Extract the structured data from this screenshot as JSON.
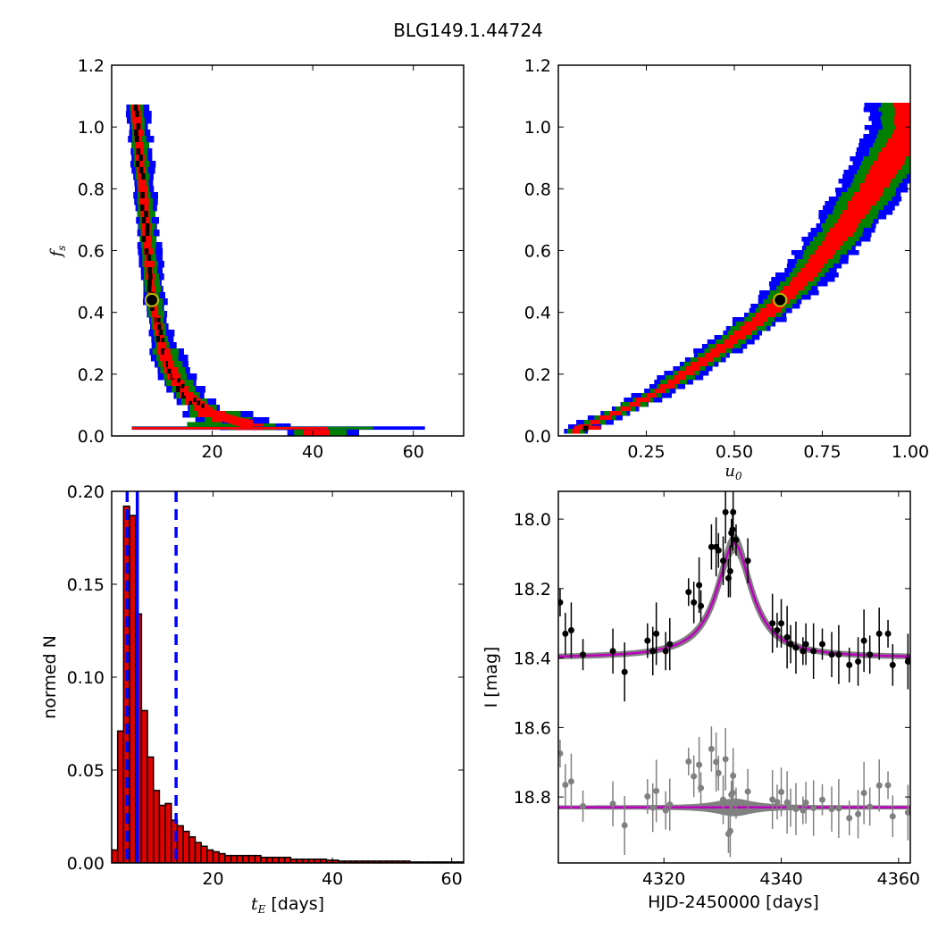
{
  "figure_title": "BLG149.1.44724",
  "colors": {
    "one_sigma": "#ff0000",
    "two_sigma": "#008000",
    "three_sigma": "#0000ff",
    "best": "#000000",
    "marker_ring": "#bfbf00",
    "hist_fill": "#e00000",
    "line_blue": "#0000ff",
    "model": "#bf00bf",
    "gray": "#808080"
  },
  "chart_data": [
    {
      "id": "tE_vs_fs",
      "type": "heatmap",
      "title": "",
      "xlabel": "",
      "ylabel": "f_s",
      "xlim": [
        0,
        70
      ],
      "ylim": [
        0,
        1.2
      ],
      "xticks": [
        "20",
        "40",
        "60"
      ],
      "yticks": [
        "0.0",
        "0.2",
        "0.4",
        "0.6",
        "0.8",
        "1.0",
        "1.2"
      ],
      "description_levels": [
        "best",
        "1-sigma",
        "2-sigma",
        "3-sigma"
      ],
      "ridge": [
        [
          4.5,
          1.08
        ],
        [
          6,
          0.8
        ],
        [
          7,
          0.6
        ],
        [
          8,
          0.44
        ],
        [
          10,
          0.28
        ],
        [
          12,
          0.2
        ],
        [
          15,
          0.13
        ],
        [
          20,
          0.07
        ],
        [
          25,
          0.045
        ],
        [
          30,
          0.03
        ],
        [
          40,
          0.025
        ],
        [
          50,
          0.025
        ],
        [
          60,
          0.025
        ]
      ],
      "best_fit": {
        "x": 8.0,
        "y": 0.44
      }
    },
    {
      "id": "u0_vs_fs",
      "type": "heatmap",
      "title": "",
      "xlabel": "u_0",
      "ylabel": "",
      "xlim": [
        0,
        1.0
      ],
      "ylim": [
        0,
        1.2
      ],
      "xticks": [
        "0.25",
        "0.50",
        "0.75",
        "1.00"
      ],
      "yticks": [
        "0.0",
        "0.2",
        "0.4",
        "0.6",
        "0.8",
        "1.0",
        "1.2"
      ],
      "ridge": [
        [
          0.05,
          0.025
        ],
        [
          0.1,
          0.05
        ],
        [
          0.2,
          0.1
        ],
        [
          0.3,
          0.16
        ],
        [
          0.4,
          0.24
        ],
        [
          0.5,
          0.32
        ],
        [
          0.6,
          0.41
        ],
        [
          0.7,
          0.52
        ],
        [
          0.8,
          0.66
        ],
        [
          0.9,
          0.82
        ],
        [
          1.0,
          1.0
        ]
      ],
      "best_fit": {
        "x": 0.63,
        "y": 0.44
      }
    },
    {
      "id": "tE_histogram",
      "type": "bar",
      "title": "",
      "xlabel": "t_E [days]",
      "ylabel": "normed N",
      "xlim": [
        3,
        62
      ],
      "ylim": [
        0,
        0.2
      ],
      "xticks": [
        "20",
        "40",
        "60"
      ],
      "yticks": [
        "0.00",
        "0.05",
        "0.10",
        "0.15",
        "0.20"
      ],
      "bin_width": 1.0,
      "bin_starts": [
        3,
        4,
        5,
        6,
        7,
        8,
        9,
        10,
        11,
        12,
        13,
        14,
        15,
        16,
        17,
        18,
        19,
        20,
        21,
        22,
        23,
        24,
        25,
        26,
        27,
        28,
        29,
        30,
        31,
        32,
        33,
        34,
        35,
        36,
        37,
        38,
        39,
        40,
        41,
        42,
        43,
        44,
        45,
        46,
        47,
        48,
        49,
        50,
        51,
        52,
        53,
        54,
        55,
        56,
        57,
        58,
        59,
        60,
        61
      ],
      "values": [
        0.007,
        0.071,
        0.192,
        0.187,
        0.134,
        0.082,
        0.057,
        0.039,
        0.031,
        0.032,
        0.023,
        0.02,
        0.017,
        0.014,
        0.011,
        0.009,
        0.007,
        0.006,
        0.005,
        0.004,
        0.004,
        0.004,
        0.004,
        0.004,
        0.004,
        0.003,
        0.003,
        0.003,
        0.003,
        0.003,
        0.002,
        0.002,
        0.002,
        0.002,
        0.002,
        0.002,
        0.0015,
        0.0015,
        0.001,
        0.001,
        0.001,
        0.001,
        0.001,
        0.001,
        0.001,
        0.001,
        0.001,
        0.001,
        0.001,
        0.001,
        0.0005,
        0.0005,
        0.0005,
        0.0005,
        0.0005,
        0.0005,
        0.0005,
        0.0005,
        0.0005
      ],
      "vlines": [
        {
          "x": 7.3,
          "style": "solid"
        },
        {
          "x": 5.6,
          "style": "dashed"
        },
        {
          "x": 13.8,
          "style": "dashed"
        }
      ]
    },
    {
      "id": "lightcurve",
      "type": "scatter",
      "title": "",
      "xlabel": "HJD-2450000 [days]",
      "ylabel": "I [mag]",
      "xlim": [
        4302,
        4362
      ],
      "ylim": [
        18.99,
        17.92
      ],
      "xticks": [
        "4320",
        "4340",
        "4360"
      ],
      "yticks": [
        "18.0",
        "18.2",
        "18.4",
        "18.6",
        "18.8"
      ],
      "model": {
        "t0": 4332.0,
        "base": 18.4,
        "peak": 18.07,
        "width": 3.6
      },
      "residual_offset": 18.83,
      "data_points": [
        [
          4302.3,
          18.24
        ],
        [
          4303.2,
          18.33
        ],
        [
          4304.2,
          18.32
        ],
        [
          4306.2,
          18.39
        ],
        [
          4311.3,
          18.38
        ],
        [
          4313.3,
          18.44
        ],
        [
          4317.2,
          18.35
        ],
        [
          4318.1,
          18.38
        ],
        [
          4318.7,
          18.33
        ],
        [
          4320.3,
          18.38
        ],
        [
          4321.0,
          18.36
        ],
        [
          4324.2,
          18.21
        ],
        [
          4325.1,
          18.24
        ],
        [
          4326.0,
          18.19
        ],
        [
          4326.3,
          18.25
        ],
        [
          4328.1,
          18.08
        ],
        [
          4328.9,
          18.08
        ],
        [
          4329.3,
          18.09
        ],
        [
          4330.1,
          18.12
        ],
        [
          4330.5,
          17.98
        ],
        [
          4331.0,
          18.17
        ],
        [
          4331.3,
          18.15
        ],
        [
          4331.5,
          18.04
        ],
        [
          4331.7,
          18.03
        ],
        [
          4331.8,
          17.98
        ],
        [
          4332.3,
          18.06
        ],
        [
          4334.3,
          18.12
        ],
        [
          4338.5,
          18.3
        ],
        [
          4339.3,
          18.32
        ],
        [
          4340.0,
          18.3
        ],
        [
          4341.0,
          18.34
        ],
        [
          4341.6,
          18.36
        ],
        [
          4342.5,
          18.37
        ],
        [
          4343.7,
          18.38
        ],
        [
          4344.2,
          18.36
        ],
        [
          4345.5,
          18.38
        ],
        [
          4347.0,
          18.36
        ],
        [
          4348.6,
          18.39
        ],
        [
          4349.8,
          18.39
        ],
        [
          4351.6,
          18.42
        ],
        [
          4353.1,
          18.41
        ],
        [
          4354.1,
          18.35
        ],
        [
          4355.1,
          18.39
        ],
        [
          4356.7,
          18.33
        ],
        [
          4358.2,
          18.33
        ],
        [
          4359.0,
          18.42
        ],
        [
          4361.6,
          18.41
        ]
      ]
    }
  ]
}
